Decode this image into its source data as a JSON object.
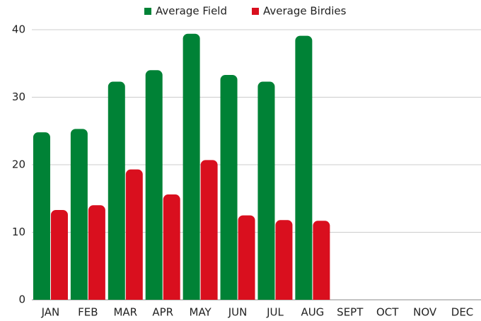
{
  "chart_data": {
    "type": "bar",
    "categories": [
      "JAN",
      "FEB",
      "MAR",
      "APR",
      "MAY",
      "JUN",
      "JUL",
      "AUG",
      "SEPT",
      "OCT",
      "NOV",
      "DEC"
    ],
    "series": [
      {
        "name": "Average Field",
        "color": "#008236",
        "values": [
          24.8,
          25.3,
          32.3,
          34.0,
          39.4,
          33.3,
          32.3,
          39.1,
          null,
          null,
          null,
          null
        ]
      },
      {
        "name": "Average Birdies",
        "color": "#d90f1e",
        "values": [
          13.3,
          14.0,
          19.3,
          15.6,
          20.7,
          12.5,
          11.8,
          11.7,
          null,
          null,
          null,
          null
        ]
      }
    ],
    "ylim": [
      0,
      40
    ],
    "yticks": [
      0,
      10,
      20,
      30,
      40
    ],
    "grid": true,
    "legend": "top"
  }
}
